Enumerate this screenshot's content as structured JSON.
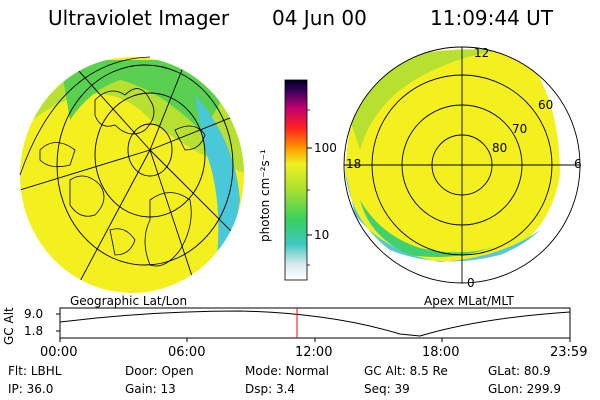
{
  "header": {
    "instrument": "Ultraviolet Imager",
    "date": "04 Jun 00",
    "time": "11:09:44 UT"
  },
  "colorbar": {
    "unit_label": "photon cm⁻²s⁻¹",
    "ticks": [
      "100",
      "10"
    ]
  },
  "left_panel": {
    "label": "Geographic Lat/Lon"
  },
  "right_panel": {
    "label": "Apex MLat/MLT",
    "lat_labels": [
      "60",
      "70",
      "80"
    ],
    "mlt_labels": {
      "top": "12",
      "left": "18",
      "right": "6",
      "bottom": "0"
    }
  },
  "altitude_plot": {
    "ylabel": "GC Alt",
    "yticks": [
      "9.0",
      "1.8"
    ],
    "xticks": [
      "00:00",
      "06:00",
      "12:00",
      "18:00",
      "23:59"
    ],
    "current_time_marker": "11:09"
  },
  "info_rows": [
    [
      {
        "label": "Flt:",
        "value": "LBHL"
      },
      {
        "label": "Door:",
        "value": "Open"
      },
      {
        "label": "Mode:",
        "value": "Normal"
      },
      {
        "label": "GC Alt:",
        "value": "8.5 Re"
      },
      {
        "label": "GLat:",
        "value": "80.9"
      }
    ],
    [
      {
        "label": "IP:",
        "value": "36.0"
      },
      {
        "label": "Gain:",
        "value": "13"
      },
      {
        "label": "Dsp:",
        "value": "3.4"
      },
      {
        "label": "Seq:",
        "value": "39"
      },
      {
        "label": "GLon:",
        "value": "299.9"
      }
    ]
  ]
}
